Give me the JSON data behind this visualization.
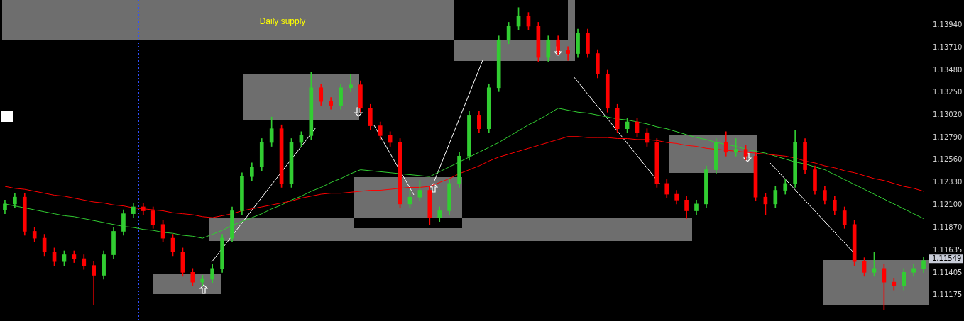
{
  "chart_data": {
    "type": "candlestick",
    "categories": [
      null,
      null,
      null,
      null,
      null,
      null,
      null,
      null,
      null,
      null,
      null,
      null,
      null,
      null,
      null,
      null,
      null,
      null,
      null,
      null,
      null,
      null,
      null,
      null,
      null,
      null,
      null,
      null,
      null,
      null,
      null,
      null,
      null,
      null,
      null,
      null,
      null,
      null,
      null,
      null,
      null,
      null,
      null,
      null,
      null,
      null,
      null,
      null,
      null,
      null,
      null,
      null,
      null,
      null,
      null,
      null,
      null,
      null,
      null,
      null,
      null,
      null,
      null,
      null,
      null,
      null,
      null,
      null,
      null,
      null,
      null,
      null,
      null,
      null,
      null,
      null,
      null,
      null,
      null,
      null,
      null,
      null,
      null,
      null,
      null,
      null,
      null,
      null,
      null,
      null,
      null,
      null,
      null,
      null
    ],
    "ohlc": [
      [
        1.1205,
        1.1215,
        1.1201,
        1.1211
      ],
      [
        1.1211,
        1.1222,
        1.1207,
        1.1218
      ],
      [
        1.1218,
        1.1222,
        1.1179,
        1.1183
      ],
      [
        1.1183,
        1.1187,
        1.1172,
        1.1176
      ],
      [
        1.1176,
        1.118,
        1.1158,
        1.1162
      ],
      [
        1.1162,
        1.1166,
        1.1148,
        1.1152
      ],
      [
        1.1152,
        1.1163,
        1.1148,
        1.1159
      ],
      [
        1.1159,
        1.1163,
        1.1151,
        1.1155
      ],
      [
        1.1155,
        1.1159,
        1.1144,
        1.1148
      ],
      [
        1.1148,
        1.1152,
        1.1108,
        1.1138
      ],
      [
        1.1138,
        1.1163,
        1.1134,
        1.1159
      ],
      [
        1.1159,
        1.1187,
        1.1155,
        1.1183
      ],
      [
        1.1183,
        1.1205,
        1.1179,
        1.1201
      ],
      [
        1.1201,
        1.1212,
        1.1197,
        1.1208
      ],
      [
        1.1208,
        1.1212,
        1.12,
        1.1204
      ],
      [
        1.1204,
        1.1208,
        1.1186,
        1.119
      ],
      [
        1.119,
        1.1194,
        1.1172,
        1.1176
      ],
      [
        1.1176,
        1.118,
        1.1158,
        1.1162
      ],
      [
        1.1162,
        1.1166,
        1.1137,
        1.1141
      ],
      [
        1.1141,
        1.1145,
        1.1127,
        1.1131
      ],
      [
        1.1131,
        1.1138,
        1.1127,
        1.1134
      ],
      [
        1.1134,
        1.1149,
        1.113,
        1.1145
      ],
      [
        1.1145,
        1.118,
        1.1141,
        1.1176
      ],
      [
        1.1176,
        1.1208,
        1.1172,
        1.1204
      ],
      [
        1.1204,
        1.1243,
        1.12,
        1.1239
      ],
      [
        1.1239,
        1.1253,
        1.1235,
        1.1249
      ],
      [
        1.1249,
        1.1278,
        1.1245,
        1.1274
      ],
      [
        1.1274,
        1.13,
        1.127,
        1.1288
      ],
      [
        1.1288,
        1.1292,
        1.1228,
        1.1232
      ],
      [
        1.1232,
        1.1278,
        1.1228,
        1.1274
      ],
      [
        1.1274,
        1.1285,
        1.127,
        1.1281
      ],
      [
        1.1281,
        1.1346,
        1.1277,
        1.133
      ],
      [
        1.133,
        1.1334,
        1.1312,
        1.1316
      ],
      [
        1.1316,
        1.132,
        1.1308,
        1.1312
      ],
      [
        1.1312,
        1.1334,
        1.1308,
        1.133
      ],
      [
        1.133,
        1.1344,
        1.1326,
        1.1333
      ],
      [
        1.1333,
        1.1337,
        1.1305,
        1.1309
      ],
      [
        1.1309,
        1.1313,
        1.1287,
        1.1291
      ],
      [
        1.1291,
        1.1295,
        1.1277,
        1.1281
      ],
      [
        1.1281,
        1.1285,
        1.127,
        1.1274
      ],
      [
        1.1274,
        1.1278,
        1.1207,
        1.1211
      ],
      [
        1.1211,
        1.1225,
        1.1207,
        1.1218
      ],
      [
        1.1218,
        1.1235,
        1.1214,
        1.1225
      ],
      [
        1.1225,
        1.1229,
        1.119,
        1.1197
      ],
      [
        1.1197,
        1.1208,
        1.1193,
        1.1204
      ],
      [
        1.1204,
        1.1236,
        1.12,
        1.1232
      ],
      [
        1.1232,
        1.1264,
        1.1228,
        1.126
      ],
      [
        1.126,
        1.1306,
        1.1256,
        1.1302
      ],
      [
        1.1302,
        1.1306,
        1.1284,
        1.1288
      ],
      [
        1.1288,
        1.1334,
        1.1284,
        1.133
      ],
      [
        1.133,
        1.1383,
        1.1326,
        1.1379
      ],
      [
        1.1379,
        1.1397,
        1.1375,
        1.1393
      ],
      [
        1.1393,
        1.1412,
        1.1389,
        1.1403
      ],
      [
        1.1403,
        1.1407,
        1.1389,
        1.1393
      ],
      [
        1.1393,
        1.1397,
        1.1357,
        1.1361
      ],
      [
        1.1361,
        1.1383,
        1.1357,
        1.1379
      ],
      [
        1.1379,
        1.1383,
        1.1364,
        1.1368
      ],
      [
        1.1368,
        1.1372,
        1.1358,
        1.1365
      ],
      [
        1.1365,
        1.139,
        1.1361,
        1.1386
      ],
      [
        1.1386,
        1.139,
        1.1361,
        1.1365
      ],
      [
        1.1365,
        1.1369,
        1.134,
        1.1344
      ],
      [
        1.1344,
        1.1348,
        1.1305,
        1.1309
      ],
      [
        1.1309,
        1.1313,
        1.1284,
        1.1288
      ],
      [
        1.1288,
        1.1299,
        1.1284,
        1.1295
      ],
      [
        1.1295,
        1.1299,
        1.128,
        1.1284
      ],
      [
        1.1284,
        1.1288,
        1.127,
        1.1274
      ],
      [
        1.1274,
        1.1278,
        1.1228,
        1.1232
      ],
      [
        1.1232,
        1.1236,
        1.1217,
        1.1221
      ],
      [
        1.1221,
        1.1225,
        1.1211,
        1.1215
      ],
      [
        1.1215,
        1.1219,
        1.1196,
        1.1204
      ],
      [
        1.1204,
        1.1215,
        1.12,
        1.1211
      ],
      [
        1.1211,
        1.125,
        1.1207,
        1.1246
      ],
      [
        1.1246,
        1.1278,
        1.1242,
        1.1274
      ],
      [
        1.1274,
        1.1285,
        1.126,
        1.1264
      ],
      [
        1.1264,
        1.1278,
        1.126,
        1.1267
      ],
      [
        1.1267,
        1.1271,
        1.1256,
        1.126
      ],
      [
        1.126,
        1.1264,
        1.1214,
        1.1218
      ],
      [
        1.1218,
        1.1222,
        1.12,
        1.1211
      ],
      [
        1.1211,
        1.1229,
        1.1207,
        1.1225
      ],
      [
        1.1225,
        1.1236,
        1.1221,
        1.1232
      ],
      [
        1.1232,
        1.1286,
        1.1228,
        1.1274
      ],
      [
        1.1274,
        1.1278,
        1.1242,
        1.1246
      ],
      [
        1.1246,
        1.125,
        1.1221,
        1.1225
      ],
      [
        1.1225,
        1.1229,
        1.1211,
        1.1215
      ],
      [
        1.1215,
        1.1219,
        1.12,
        1.1204
      ],
      [
        1.1204,
        1.1208,
        1.1186,
        1.119
      ],
      [
        1.119,
        1.1194,
        1.1148,
        1.1152
      ],
      [
        1.1152,
        1.1156,
        1.1137,
        1.1141
      ],
      [
        1.1141,
        1.1162,
        1.1137,
        1.1145
      ],
      [
        1.1145,
        1.1149,
        1.1103,
        1.1131
      ],
      [
        1.1131,
        1.1135,
        1.1123,
        1.1127
      ],
      [
        1.1127,
        1.1145,
        1.1123,
        1.1141
      ],
      [
        1.1141,
        1.1149,
        1.1137,
        1.1145
      ],
      [
        1.1145,
        1.1157,
        1.1141,
        1.1153
      ]
    ],
    "series": [
      {
        "type": "line",
        "color": "#ff0000",
        "values": [
          1.1229,
          1.1227,
          1.1226,
          1.1224,
          1.1222,
          1.122,
          1.1219,
          1.1217,
          1.1215,
          1.1213,
          1.1212,
          1.121,
          1.1209,
          1.1207,
          1.1206,
          1.1205,
          1.1204,
          1.1202,
          1.1201,
          1.12,
          1.1198,
          1.1197,
          1.1199,
          1.1201,
          1.1204,
          1.1206,
          1.1208,
          1.121,
          1.1212,
          1.1214,
          1.1217,
          1.1219,
          1.1221,
          1.1222,
          1.1222,
          1.1223,
          1.1224,
          1.1225,
          1.1225,
          1.1226,
          1.1227,
          1.1228,
          1.1228,
          1.1229,
          1.1233,
          1.1237,
          1.1242,
          1.1246,
          1.125,
          1.1255,
          1.1259,
          1.1262,
          1.1265,
          1.1268,
          1.1271,
          1.1274,
          1.1277,
          1.128,
          1.128,
          1.1279,
          1.1279,
          1.1279,
          1.1278,
          1.1278,
          1.1277,
          1.1277,
          1.1276,
          1.1274,
          1.1273,
          1.1271,
          1.127,
          1.1268,
          1.1267,
          1.1266,
          1.1265,
          1.1264,
          1.1263,
          1.1262,
          1.1261,
          1.126,
          1.1258,
          1.1255,
          1.1253,
          1.125,
          1.1248,
          1.1245,
          1.1243,
          1.124,
          1.1237,
          1.1235,
          1.1232,
          1.1229,
          1.1227,
          1.1224
        ]
      },
      {
        "type": "line",
        "color": "#32cd32",
        "values": [
          1.1211,
          1.1209,
          1.1207,
          1.1205,
          1.1203,
          1.1201,
          1.1199,
          1.1198,
          1.1196,
          1.1194,
          1.1192,
          1.119,
          1.1188,
          1.1187,
          1.1185,
          1.1184,
          1.1182,
          1.1181,
          1.1179,
          1.1178,
          1.1176,
          1.118,
          1.1184,
          1.1189,
          1.1193,
          1.1197,
          1.1201,
          1.1206,
          1.121,
          1.1215,
          1.1219,
          1.1224,
          1.1228,
          1.1233,
          1.1237,
          1.1242,
          1.1246,
          1.1245,
          1.1244,
          1.1243,
          1.1242,
          1.1241,
          1.124,
          1.1239,
          1.1244,
          1.1249,
          1.1254,
          1.1259,
          1.1264,
          1.1269,
          1.1274,
          1.128,
          1.1286,
          1.1292,
          1.1297,
          1.1303,
          1.1309,
          1.1307,
          1.1305,
          1.1304,
          1.1302,
          1.13,
          1.1298,
          1.1297,
          1.1295,
          1.1293,
          1.129,
          1.1288,
          1.1285,
          1.1282,
          1.1279,
          1.1277,
          1.1274,
          1.1272,
          1.127,
          1.1267,
          1.1265,
          1.1263,
          1.126,
          1.1257,
          1.1254,
          1.1252,
          1.1249,
          1.1246,
          1.1241,
          1.1236,
          1.1231,
          1.1226,
          1.1221,
          1.1216,
          1.1211,
          1.1206,
          1.1201,
          1.1196
        ]
      }
    ],
    "ylim": [
      1.1097,
      1.1414
    ],
    "yticks": [
      {
        "value": 1.1394,
        "label": "1.13940"
      },
      {
        "value": 1.1371,
        "label": "1.13710"
      },
      {
        "value": 1.1348,
        "label": "1.13480"
      },
      {
        "value": 1.1325,
        "label": "1.13250"
      },
      {
        "value": 1.1302,
        "label": "1.13020"
      },
      {
        "value": 1.1279,
        "label": "1.12790"
      },
      {
        "value": 1.1256,
        "label": "1.12560"
      },
      {
        "value": 1.1233,
        "label": "1.12330"
      },
      {
        "value": 1.121,
        "label": "1.12100"
      },
      {
        "value": 1.1187,
        "label": "1.11870"
      },
      {
        "value": 1.11635,
        "label": "1.11635"
      },
      {
        "value": 1.11405,
        "label": "1.11405"
      },
      {
        "value": 1.11175,
        "label": "1.11175"
      }
    ],
    "ref_lines": [
      {
        "axis": "y",
        "value": 1.11549,
        "label": "1.11549",
        "color": "#c8ccd8"
      }
    ],
    "annotations": [
      "Daily supply"
    ]
  }
}
